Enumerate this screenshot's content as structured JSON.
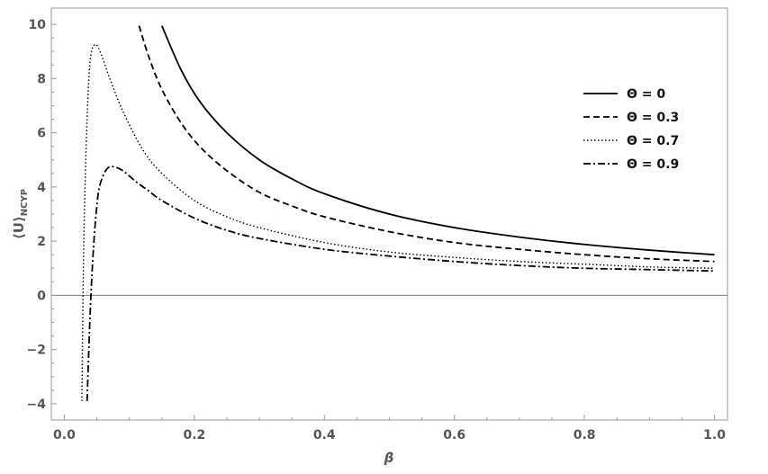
{
  "chart_data": {
    "type": "line",
    "title": "",
    "xlabel": "β",
    "ylabel": "⟨U⟩",
    "ylabel_subscript": "NCYP",
    "xlim": [
      -0.02,
      1.02
    ],
    "ylim": [
      -4.6,
      10.6
    ],
    "grid": false,
    "legend_position": "right-center",
    "x_ticks": [
      0.0,
      0.2,
      0.4,
      0.6,
      0.8,
      1.0
    ],
    "x_tick_labels": [
      "0.0",
      "0.2",
      "0.4",
      "0.6",
      "0.8",
      "1.0"
    ],
    "y_ticks": [
      -4,
      -2,
      0,
      2,
      4,
      6,
      8,
      10
    ],
    "y_tick_labels": [
      "−4",
      "−2",
      "0",
      "2",
      "4",
      "6",
      "8",
      "10"
    ],
    "series": [
      {
        "name": "Θ = 0",
        "style": "solid",
        "x": [
          0.15,
          0.18,
          0.21,
          0.25,
          0.3,
          0.35,
          0.4,
          0.5,
          0.6,
          0.7,
          0.8,
          0.9,
          1.0
        ],
        "y": [
          9.95,
          8.3,
          7.1,
          6.0,
          5.0,
          4.3,
          3.75,
          3.0,
          2.5,
          2.15,
          1.88,
          1.67,
          1.5
        ]
      },
      {
        "name": "Θ = 0.3",
        "style": "dashed",
        "x": [
          0.115,
          0.13,
          0.15,
          0.18,
          0.21,
          0.25,
          0.3,
          0.35,
          0.4,
          0.5,
          0.6,
          0.7,
          0.8,
          0.9,
          1.0
        ],
        "y": [
          9.95,
          8.8,
          7.6,
          6.35,
          5.45,
          4.6,
          3.8,
          3.3,
          2.9,
          2.35,
          1.95,
          1.7,
          1.5,
          1.35,
          1.25
        ]
      },
      {
        "name": "Θ = 0.7",
        "style": "dotted",
        "x": [
          0.027,
          0.03,
          0.035,
          0.04,
          0.047,
          0.055,
          0.07,
          0.09,
          0.12,
          0.15,
          0.2,
          0.25,
          0.3,
          0.4,
          0.5,
          0.6,
          0.7,
          0.8,
          0.9,
          1.0
        ],
        "y": [
          -3.9,
          2.0,
          6.5,
          8.7,
          9.25,
          9.0,
          8.0,
          6.8,
          5.4,
          4.5,
          3.5,
          2.9,
          2.5,
          1.95,
          1.6,
          1.4,
          1.25,
          1.15,
          1.05,
          1.0
        ]
      },
      {
        "name": "Θ = 0.9",
        "style": "dashdot",
        "x": [
          0.035,
          0.04,
          0.045,
          0.05,
          0.055,
          0.065,
          0.075,
          0.09,
          0.11,
          0.13,
          0.15,
          0.2,
          0.25,
          0.3,
          0.4,
          0.5,
          0.6,
          0.7,
          0.8,
          0.9,
          1.0
        ],
        "y": [
          -3.9,
          -0.5,
          1.8,
          3.3,
          4.1,
          4.65,
          4.75,
          4.6,
          4.2,
          3.85,
          3.5,
          2.85,
          2.4,
          2.1,
          1.7,
          1.45,
          1.25,
          1.1,
          1.0,
          0.95,
          0.9
        ]
      }
    ]
  }
}
